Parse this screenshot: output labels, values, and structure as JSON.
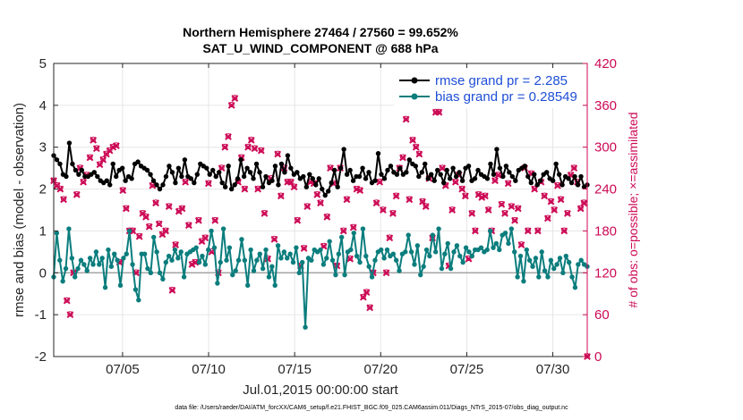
{
  "chart_data": {
    "type": "line",
    "title": "Northern Hemisphere 27464 / 27560 = 99.652%",
    "subtitle": "SAT_U_WIND_COMPONENT @ 688 hPa",
    "xlabel": "Jul.01,2015 00:00:00 start",
    "ylabel": "rmse and bias (model - observation)",
    "y2label": "# of obs: o=possible; ×=assimilated",
    "xlim": [
      1,
      32
    ],
    "ylim": [
      -2,
      5
    ],
    "y2lim": [
      0,
      420
    ],
    "x_ticks": [
      5,
      10,
      15,
      20,
      25,
      30
    ],
    "x_tick_labels": [
      "07/05",
      "07/10",
      "07/15",
      "07/20",
      "07/25",
      "07/30"
    ],
    "y_ticks": [
      "-2",
      "-1",
      "0",
      "1",
      "2",
      "3",
      "4",
      "5"
    ],
    "y2_ticks": [
      "0",
      "60",
      "120",
      "180",
      "240",
      "300",
      "360",
      "420"
    ],
    "grid": true,
    "legend_position": "top-right",
    "series": [
      {
        "name": "rmse grand pr = 2.285",
        "color": "#000000",
        "marker": "circle",
        "axis": "left",
        "values": [
          2.8,
          2.7,
          2.6,
          2.35,
          2.3,
          3.1,
          2.6,
          2.45,
          2.35,
          2.45,
          2.3,
          2.3,
          2.35,
          2.4,
          2.3,
          2.2,
          2.15,
          2.2,
          2.1,
          2.6,
          2.3,
          2.45,
          2.5,
          2.2,
          2.3,
          2.25,
          2.6,
          2.65,
          2.55,
          2.5,
          2.45,
          2.35,
          2.2,
          2.1,
          2.0,
          2.1,
          2.3,
          2.55,
          2.4,
          2.15,
          2.5,
          2.3,
          2.7,
          2.3,
          2.25,
          2.15,
          2.35,
          2.6,
          2.55,
          2.5,
          2.35,
          2.45,
          2.3,
          2.4,
          2.15,
          2.05,
          2.55,
          2.0,
          2.1,
          2.25,
          2.7,
          2.3,
          2.5,
          2.4,
          2.25,
          2.6,
          2.4,
          2.05,
          2.3,
          2.15,
          2.2,
          2.55,
          2.1,
          2.6,
          2.4,
          2.8,
          2.5,
          2.35,
          2.4,
          2.25,
          2.3,
          2.05,
          2.35,
          2.25,
          2.1,
          2.25,
          2.0,
          1.85,
          1.95,
          2.15,
          2.45,
          2.05,
          2.5,
          2.95,
          2.35,
          2.45,
          2.2,
          2.3,
          2.3,
          2.5,
          2.25,
          2.4,
          2.15,
          2.2,
          2.85,
          2.35,
          2.25,
          2.45,
          2.55,
          2.4,
          2.35,
          2.5,
          2.35,
          2.4,
          2.7,
          2.6,
          2.55,
          2.3,
          2.4,
          2.6,
          2.25,
          2.35,
          2.2,
          2.45,
          2.35,
          2.15,
          2.45,
          2.25,
          2.5,
          2.3,
          2.4,
          2.2,
          2.5,
          2.55,
          2.2,
          2.25,
          2.45,
          2.35,
          2.3,
          2.25,
          2.6,
          2.35,
          2.95,
          2.5,
          2.3,
          2.55,
          2.4,
          2.3,
          2.2,
          2.45,
          2.5,
          2.55,
          2.3,
          2.15,
          2.35,
          2.1,
          2.2,
          2.35,
          2.4,
          2.25,
          2.2,
          2.6,
          2.35,
          2.1,
          2.3,
          2.25,
          2.15,
          2.3,
          2.1,
          2.3,
          2.05,
          2.1
        ]
      },
      {
        "name": "bias grand pr = 0.28549",
        "color": "#0b7d7d",
        "marker": "circle",
        "axis": "left",
        "values": [
          -0.1,
          0.95,
          0.3,
          -0.2,
          0.1,
          1.05,
          0.35,
          -0.1,
          0.1,
          0.3,
          0.2,
          0.05,
          0.35,
          0.2,
          0.5,
          0.2,
          0.35,
          -0.35,
          0.55,
          0.15,
          0.45,
          0.3,
          -0.3,
          0.35,
          0.45,
          1.0,
          0.2,
          -0.4,
          -0.65,
          0.45,
          0.45,
          0.1,
          0.0,
          0.85,
          0.5,
          0.0,
          -0.15,
          0.25,
          0.4,
          0.3,
          0.55,
          0.35,
          0.5,
          -0.1,
          0.45,
          0.5,
          0.55,
          0.6,
          0.25,
          0.4,
          0.2,
          0.55,
          1.0,
          0.6,
          -0.25,
          0.25,
          1.05,
          0.3,
          0.6,
          -0.05,
          0.05,
          0.3,
          0.8,
          0.3,
          -0.3,
          0.55,
          0.05,
          0.3,
          0.45,
          0.1,
          0.55,
          -0.1,
          0.15,
          -0.3,
          0.65,
          0.35,
          0.5,
          0.35,
          0.45,
          0.25,
          0.6,
          0.0,
          0.25,
          -1.3,
          0.35,
          0.3,
          0.55,
          0.5,
          0.55,
          0.2,
          0.35,
          0.75,
          0.3,
          -0.05,
          0.45,
          0.85,
          -0.05,
          0.5,
          0.55,
          0.95,
          0.4,
          0.25,
          1.05,
          0.4,
          0.15,
          -0.1,
          0.3,
          0.5,
          0.55,
          0.35,
          0.55,
          0.4,
          0.45,
          0.3,
          0.05,
          0.45,
          0.5,
          0.9,
          0.5,
          0.2,
          0.65,
          -0.05,
          0.15,
          0.55,
          0.4,
          0.9,
          0.5,
          1.05,
          0.1,
          0.45,
          0.7,
          0.1,
          0.5,
          0.65,
          0.4,
          0.25,
          0.6,
          0.5,
          0.4,
          0.55,
          0.55,
          0.6,
          0.5,
          0.55,
          1.0,
          0.6,
          0.7,
          0.55,
          0.9,
          0.95,
          0.7,
          1.05,
          0.5,
          -0.1,
          0.4,
          -0.2,
          0.55,
          0.3,
          0.15,
          0.35,
          -0.1,
          0.5,
          0.05,
          -0.1,
          0.3,
          0.1,
          0.2,
          0.35,
          0.0,
          0.4,
          0.25,
          -0.1,
          -0.35,
          0.2,
          0.3,
          0.2,
          0.15
        ]
      },
      {
        "name": "# of obs assimilated",
        "color": "#cc0a55",
        "marker": "x",
        "axis": "right",
        "values": [
          252,
          245,
          240,
          225,
          80,
          60,
          120,
          232,
          270,
          250,
          260,
          285,
          310,
          298,
          275,
          282,
          290,
          295,
          300,
          302,
          135,
          238,
          212,
          180,
          180,
          120,
          172,
          205,
          200,
          186,
          245,
          220,
          190,
          175,
          180,
          215,
          95,
          160,
          208,
          212,
          250,
          188,
          132,
          135,
          195,
          165,
          170,
          248,
          150,
          195,
          120,
          270,
          300,
          315,
          360,
          370,
          250,
          285,
          240,
          300,
          310,
          298,
          240,
          295,
          205,
          140,
          255,
          168,
          290,
          230,
          270,
          250,
          250,
          243,
          195,
          130,
          155,
          215,
          250,
          248,
          232,
          220,
          158,
          200,
          270,
          248,
          130,
          270,
          180,
          225,
          140,
          185,
          240,
          238,
          85,
          92,
          70,
          120,
          220,
          250,
          210,
          120,
          170,
          205,
          230,
          270,
          285,
          340,
          225,
          310,
          300,
          290,
          222,
          215,
          255,
          170,
          350,
          350,
          270,
          245,
          130,
          210,
          250,
          260,
          240,
          230,
          140,
          205,
          180,
          232,
          228,
          230,
          210,
          180,
          252,
          260,
          218,
          205,
          248,
          215,
          195,
          212,
          160,
          270,
          180,
          262,
          240,
          180,
          250,
          230,
          198,
          222,
          210,
          245,
          225,
          180,
          205,
          260,
          270,
          250,
          212,
          220,
          0
        ]
      },
      {
        "name": "# of obs possible",
        "color": "#cc0a55",
        "marker": "o",
        "axis": "right",
        "values": [
          253,
          246,
          241,
          226,
          81,
          61,
          121,
          233,
          271,
          251,
          261,
          286,
          311,
          299,
          276,
          283,
          291,
          296,
          301,
          303,
          136,
          239,
          213,
          181,
          181,
          121,
          173,
          206,
          201,
          187,
          246,
          221,
          191,
          176,
          181,
          216,
          96,
          161,
          209,
          213,
          251,
          189,
          133,
          136,
          196,
          166,
          171,
          249,
          151,
          196,
          121,
          271,
          301,
          316,
          361,
          371,
          251,
          286,
          241,
          301,
          311,
          299,
          241,
          296,
          206,
          141,
          256,
          169,
          291,
          231,
          271,
          251,
          251,
          244,
          196,
          131,
          156,
          216,
          251,
          249,
          233,
          221,
          159,
          201,
          271,
          249,
          131,
          271,
          181,
          226,
          141,
          186,
          241,
          239,
          86,
          93,
          71,
          121,
          221,
          251,
          211,
          121,
          171,
          206,
          231,
          271,
          286,
          341,
          226,
          311,
          301,
          291,
          223,
          216,
          256,
          171,
          351,
          351,
          271,
          246,
          131,
          211,
          251,
          261,
          241,
          231,
          141,
          206,
          181,
          233,
          229,
          231,
          211,
          181,
          253,
          261,
          219,
          206,
          249,
          216,
          196,
          213,
          161,
          271,
          181,
          263,
          241,
          181,
          251,
          231,
          199,
          223,
          211,
          246,
          226,
          181,
          206,
          261,
          271,
          251,
          213,
          221,
          1
        ]
      }
    ]
  },
  "footer": {
    "data_file": "data file: /Users/raeder/DAI/ATM_forcXX/CAM6_setup/f.e21.FHIST_BGC.f09_025.CAM6assim.011/Diags_NTrS_2015-07/obs_diag_output.nc"
  }
}
